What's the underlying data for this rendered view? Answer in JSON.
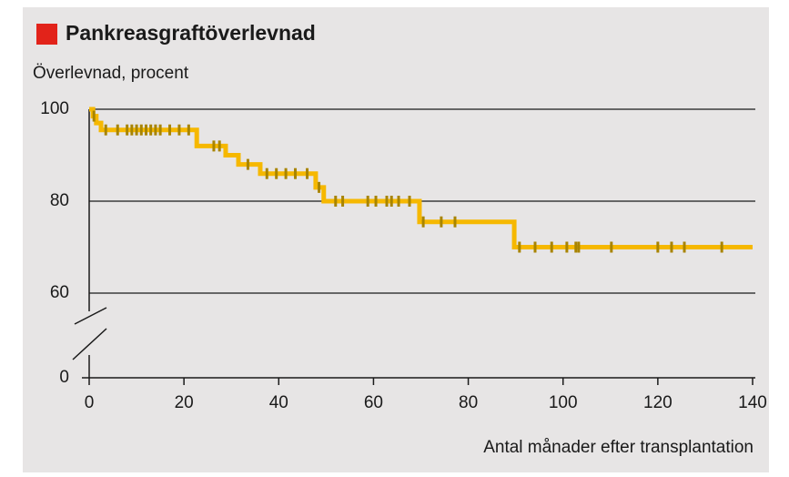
{
  "chart_data": {
    "type": "kaplan-meier",
    "title": "Pankreasgraftöverlevnad",
    "y_label": "Överlevnad, procent",
    "x_label": "Antal månader efter transplantation",
    "series": [
      {
        "color": "#f6b800",
        "x": [
          0,
          0.8,
          1.5,
          2.5,
          22.7,
          28.8,
          31.5,
          36.1,
          47.8,
          49.5,
          69.7,
          89.7,
          140
        ],
        "values": [
          100,
          98.5,
          97,
          95.5,
          92,
          90,
          88,
          86,
          83,
          80,
          75.5,
          70,
          70
        ]
      }
    ],
    "censored": {
      "color": "#a88400",
      "x": [
        1,
        3.5,
        6,
        8,
        9,
        10,
        11,
        12,
        13,
        14,
        15,
        17,
        19,
        21,
        26.3,
        27.5,
        33.5,
        37.5,
        39.5,
        41.5,
        43.5,
        46,
        48.5,
        52,
        53.5,
        58.8,
        60.5,
        62.8,
        63.8,
        65.3,
        67.6,
        70.5,
        74.3,
        77.2,
        90.8,
        94.1,
        97.6,
        100.8,
        102.7,
        103.3,
        110.2,
        120,
        122.9,
        125.6,
        133.5
      ],
      "values": [
        98.5,
        95.5,
        95.5,
        95.5,
        95.5,
        95.5,
        95.5,
        95.5,
        95.5,
        95.5,
        95.5,
        95.5,
        95.5,
        95.5,
        92,
        92,
        88,
        86,
        86,
        86,
        86,
        86,
        83,
        80,
        80,
        80,
        80,
        80,
        80,
        80,
        80,
        75.5,
        75.5,
        75.5,
        70,
        70,
        70,
        70,
        70,
        70,
        70,
        70,
        70,
        70,
        70
      ]
    },
    "xlim": [
      0,
      140
    ],
    "xticks": [
      0,
      20,
      40,
      60,
      80,
      100,
      120,
      140
    ],
    "ylim": [
      0,
      100
    ],
    "yticks": [
      0,
      60,
      80,
      100
    ],
    "ybreak": [
      0,
      60
    ],
    "grid": true,
    "title_marker_color": "#e2231a"
  }
}
